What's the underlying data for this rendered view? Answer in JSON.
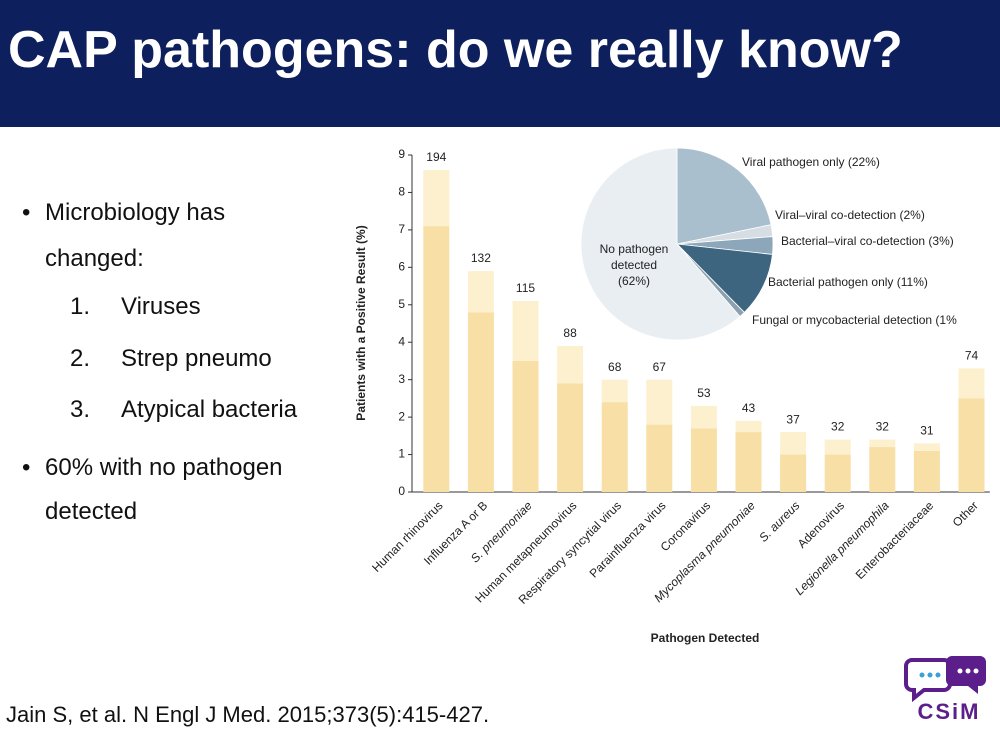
{
  "slide": {
    "title": "CAP pathogens: do we really know?",
    "bullets": [
      "Microbiology has",
      "changed:",
      "60% with no pathogen",
      "detected"
    ],
    "numbered": [
      {
        "num": "1.",
        "text": "Viruses"
      },
      {
        "num": "2.",
        "text": "Strep pneumo"
      },
      {
        "num": "3.",
        "text": "Atypical bacteria"
      }
    ],
    "citation": "Jain S, et al. N Engl J Med. 2015;373(5):415-427.",
    "logo": "CSiM"
  },
  "chart_data": [
    {
      "type": "bar",
      "stacked": true,
      "xlabel": "Pathogen Detected",
      "ylabel": "Patients with a Positive Result (%)",
      "categories": [
        "Human rhinovirus",
        "Influenza A or B",
        "S. pneumoniae",
        "Human metapneumovirus",
        "Respiratory syncytial virus",
        "Parainfluenza virus",
        "Coronavirus",
        "Mycoplasma pneumoniae",
        "S. aureus",
        "Adenovirus",
        "Legionella pneumophila",
        "Enterobacteriaceae",
        "Other"
      ],
      "italic_categories": [
        2,
        7,
        8,
        10
      ],
      "series": [
        {
          "color": "#f7dfa5",
          "values": [
            7.1,
            4.8,
            3.5,
            2.9,
            2.4,
            1.8,
            1.7,
            1.6,
            1.0,
            1.0,
            1.2,
            1.1,
            2.5
          ]
        },
        {
          "color": "#fdf0cf",
          "values": [
            1.5,
            1.1,
            1.6,
            1.0,
            0.6,
            1.2,
            0.6,
            0.3,
            0.6,
            0.4,
            0.2,
            0.2,
            0.8
          ]
        }
      ],
      "counts": [
        194,
        132,
        115,
        88,
        68,
        67,
        53,
        43,
        37,
        32,
        32,
        31,
        74
      ],
      "ylim": [
        0,
        9
      ],
      "yticks": [
        0,
        1,
        2,
        3,
        4,
        5,
        6,
        7,
        8,
        9
      ]
    },
    {
      "type": "pie",
      "categories": [
        "Viral pathogen only (22%)",
        "Viral–viral co-detection (2%)",
        "Bacterial–viral co-detection (3%)",
        "Bacterial pathogen only (11%)",
        "Fungal or mycobacterial detection (1%",
        "No pathogen\ndetected\n(62%)"
      ],
      "values": [
        22,
        2,
        3,
        11,
        1,
        62
      ],
      "colors": [
        "#a9bfcd",
        "#d6dee4",
        "#8ca7ba",
        "#3e6580",
        "#8ba0b0",
        "#e9eef2"
      ]
    }
  ]
}
